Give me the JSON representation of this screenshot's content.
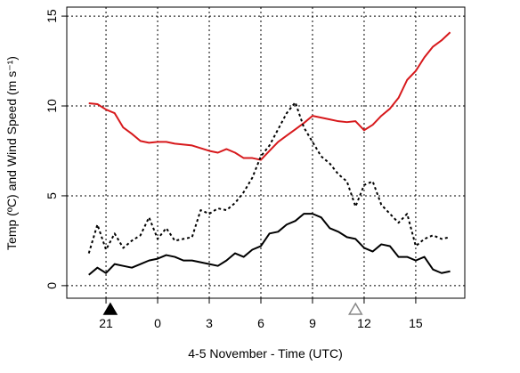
{
  "chart_data": {
    "type": "line",
    "x_label": "4-5 November - Time (UTC)",
    "y_label": "Temp (ºC) and Wind Speed (m s⁻¹)",
    "xlim": [
      18.72,
      41.85
    ],
    "ylim": [
      -0.7,
      15.5
    ],
    "xticks": [
      {
        "value": 21,
        "label": "21"
      },
      {
        "value": 24,
        "label": "0"
      },
      {
        "value": 27,
        "label": "3"
      },
      {
        "value": 30,
        "label": "6"
      },
      {
        "value": 33,
        "label": "9"
      },
      {
        "value": 36,
        "label": "12"
      },
      {
        "value": 39,
        "label": "15"
      }
    ],
    "yticks": [
      0,
      5,
      10,
      15
    ],
    "grid": true,
    "x": [
      20,
      20.5,
      21,
      21.5,
      22,
      22.5,
      23,
      23.5,
      24,
      24.5,
      25,
      25.5,
      26,
      26.5,
      27,
      27.5,
      28,
      28.5,
      29,
      29.5,
      30,
      30.5,
      31,
      31.5,
      32,
      32.5,
      33,
      33.5,
      34,
      34.5,
      35,
      35.5,
      36,
      36.5,
      37,
      37.5,
      38,
      38.5,
      39,
      39.5,
      40,
      40.5,
      41
    ],
    "series": [
      {
        "color": "#d7191c",
        "dash": "solid",
        "width": 2,
        "values": [
          10.15,
          10.1,
          9.8,
          9.6,
          8.8,
          8.45,
          8.05,
          7.95,
          8.0,
          8.0,
          7.9,
          7.85,
          7.8,
          7.65,
          7.5,
          7.4,
          7.6,
          7.4,
          7.1,
          7.1,
          7.0,
          7.5,
          8.0,
          8.35,
          8.7,
          9.05,
          9.45,
          9.35,
          9.25,
          9.15,
          9.1,
          9.15,
          8.65,
          8.95,
          9.45,
          9.85,
          10.45,
          11.45,
          11.95,
          12.7,
          13.3,
          13.65,
          14.1
        ]
      },
      {
        "color": "#000000",
        "dash": "solid",
        "width": 2,
        "values": [
          0.6,
          1.0,
          0.7,
          1.2,
          1.1,
          1.0,
          1.2,
          1.4,
          1.5,
          1.7,
          1.6,
          1.4,
          1.4,
          1.3,
          1.2,
          1.1,
          1.4,
          1.8,
          1.6,
          2.0,
          2.2,
          2.9,
          3.0,
          3.4,
          3.6,
          4.0,
          4.0,
          3.8,
          3.2,
          3.0,
          2.7,
          2.6,
          2.1,
          1.9,
          2.3,
          2.2,
          1.6,
          1.6,
          1.4,
          1.6,
          0.9,
          0.7,
          0.8
        ]
      },
      {
        "color": "#000000",
        "dash": "dotted",
        "width": 2,
        "values": [
          1.8,
          3.4,
          2.0,
          2.9,
          2.1,
          2.5,
          2.8,
          3.8,
          2.6,
          3.2,
          2.5,
          2.6,
          2.7,
          4.2,
          4.0,
          4.3,
          4.2,
          4.6,
          5.2,
          6.0,
          7.2,
          7.8,
          8.7,
          9.6,
          10.2,
          8.8,
          8.0,
          7.2,
          6.8,
          6.2,
          5.8,
          4.4,
          5.6,
          5.8,
          4.5,
          4.0,
          3.5,
          4.0,
          2.2,
          2.6,
          2.8,
          2.6,
          2.7
        ]
      }
    ],
    "markers": [
      {
        "x": 21.25,
        "fill": "#000000",
        "stroke": "#000000"
      },
      {
        "x": 35.5,
        "fill": "#ffffff",
        "stroke": "#888888"
      }
    ]
  }
}
